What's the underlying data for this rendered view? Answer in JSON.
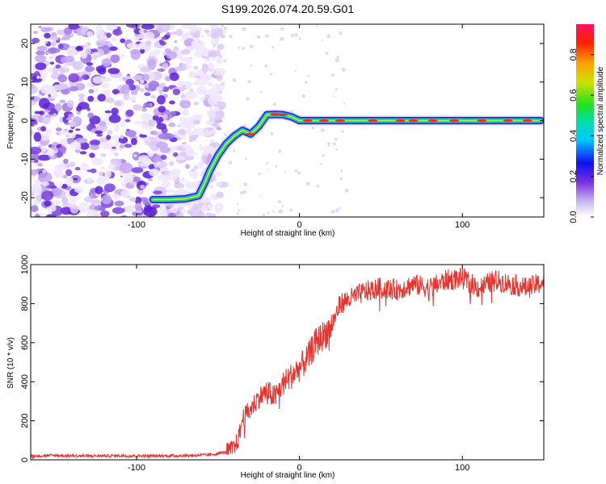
{
  "title": "S199.2026.074.20.59.G01",
  "chart_data": [
    {
      "type": "heatmap",
      "title": "S199.2026.074.20.59.G01",
      "xlabel": "Height of straight line (km)",
      "ylabel": "Frequency (Hz)",
      "xlim": [
        -165,
        150
      ],
      "ylim": [
        -25,
        25
      ],
      "xticks": [
        -100,
        0,
        100
      ],
      "yticks": [
        -20,
        -10,
        0,
        10,
        20
      ],
      "colorbar": {
        "label": "Normalized spectral amplitude",
        "range": [
          0,
          0.95
        ],
        "ticks": [
          0.0,
          0.2,
          0.4,
          0.6,
          0.8
        ]
      },
      "ridge": {
        "description": "dominant frequency vs height",
        "x": [
          -90,
          -80,
          -70,
          -62,
          -58,
          -55,
          -50,
          -45,
          -40,
          -35,
          -30,
          -25,
          -20,
          -15,
          -10,
          -5,
          0,
          10,
          30,
          60,
          100,
          148
        ],
        "y": [
          -20.5,
          -20.5,
          -20.3,
          -19.5,
          -16,
          -13,
          -9,
          -6,
          -4,
          -2.5,
          -3.5,
          -1.5,
          1.5,
          1.6,
          1.5,
          1,
          0,
          0,
          0,
          0,
          0,
          0
        ]
      },
      "noise_region_x": [
        -165,
        -55
      ]
    },
    {
      "type": "line",
      "title": "",
      "xlabel": "Height of straight line (km)",
      "ylabel": "SNR (10 * v/v)",
      "xlim": [
        -165,
        150
      ],
      "ylim": [
        0,
        1000
      ],
      "xticks": [
        -100,
        0,
        100
      ],
      "yticks": [
        0,
        200,
        400,
        600,
        800,
        1000
      ],
      "series": [
        {
          "name": "SNR",
          "color": "#e8322d",
          "x": [
            -165,
            -150,
            -130,
            -110,
            -90,
            -70,
            -55,
            -45,
            -40,
            -37,
            -35,
            -30,
            -25,
            -20,
            -15,
            -10,
            -5,
            0,
            5,
            10,
            15,
            20,
            25,
            30,
            40,
            50,
            60,
            70,
            80,
            90,
            100,
            110,
            120,
            130,
            140,
            150
          ],
          "y": [
            20,
            22,
            20,
            21,
            20,
            22,
            25,
            40,
            60,
            120,
            210,
            260,
            320,
            350,
            320,
            390,
            430,
            470,
            520,
            600,
            640,
            690,
            800,
            820,
            860,
            880,
            870,
            900,
            880,
            920,
            930,
            880,
            920,
            900,
            880,
            910
          ]
        }
      ]
    }
  ]
}
